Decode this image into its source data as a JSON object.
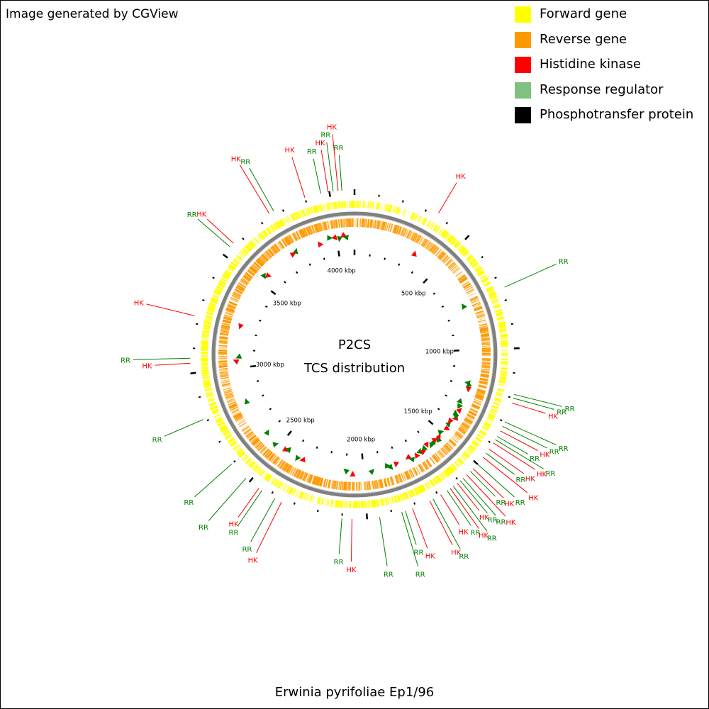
{
  "credit": "Image generated by CGView",
  "legend": [
    {
      "label": "Forward gene",
      "color": "#ffff00"
    },
    {
      "label": "Reverse gene",
      "color": "#ff9900"
    },
    {
      "label": "Histidine kinase",
      "color": "#ff0000"
    },
    {
      "label": "Response regulator",
      "color": "#80c080"
    },
    {
      "label": "Phosphotransfer protein",
      "color": "#000000"
    }
  ],
  "center_title": "P2CS",
  "center_subtitle": "TCS distribution",
  "genome_name": "Erwinia pyrifoliae Ep1/96",
  "colors": {
    "hk": "#ff0000",
    "rr": "#008000",
    "backbone": "#808080",
    "forward": "#ffff00",
    "reverse": "#ff9900"
  },
  "chart_data": {
    "type": "circular-genome-map",
    "genome_length_kbp": 4100,
    "tick_labels": [
      "500 kbp",
      "1000 kbp",
      "1500 kbp",
      "2000 kbp",
      "2500 kbp",
      "3000 kbp",
      "3500 kbp",
      "4000 kbp"
    ],
    "tick_positions_kbp": [
      500,
      1000,
      1500,
      2000,
      2500,
      3000,
      3500,
      4000
    ],
    "features": [
      {
        "label": "RR",
        "kbp": 3965,
        "type": "rr"
      },
      {
        "label": "HK",
        "kbp": 3995,
        "type": "hk"
      },
      {
        "label": "RR",
        "kbp": 4015,
        "type": "rr"
      },
      {
        "label": "HK",
        "kbp": 4035,
        "type": "hk"
      },
      {
        "label": "RR",
        "kbp": 4050,
        "type": "rr"
      },
      {
        "label": "HK",
        "kbp": 3900,
        "type": "hk"
      },
      {
        "label": "RR",
        "kbp": 3765,
        "type": "rr"
      },
      {
        "label": "HK",
        "kbp": 3745,
        "type": "hk"
      },
      {
        "label": "HK",
        "kbp": 3560,
        "type": "hk"
      },
      {
        "label": "RR",
        "kbp": 3540,
        "type": "rr"
      },
      {
        "label": "HK",
        "kbp": 3230,
        "type": "hk"
      },
      {
        "label": "RR",
        "kbp": 3060,
        "type": "rr"
      },
      {
        "label": "HK",
        "kbp": 3040,
        "type": "hk"
      },
      {
        "label": "RR",
        "kbp": 2810,
        "type": "rr"
      },
      {
        "label": "RR",
        "kbp": 2600,
        "type": "rr"
      },
      {
        "label": "RR",
        "kbp": 2520,
        "type": "rr"
      },
      {
        "label": "HK",
        "kbp": 2455,
        "type": "hk"
      },
      {
        "label": "RR",
        "kbp": 2440,
        "type": "rr"
      },
      {
        "label": "RR",
        "kbp": 2380,
        "type": "rr"
      },
      {
        "label": "HK",
        "kbp": 2350,
        "type": "hk"
      },
      {
        "label": "RR",
        "kbp": 2100,
        "type": "rr"
      },
      {
        "label": "HK",
        "kbp": 2060,
        "type": "hk"
      },
      {
        "label": "RR",
        "kbp": 1950,
        "type": "rr"
      },
      {
        "label": "RR",
        "kbp": 1860,
        "type": "rr"
      },
      {
        "label": "RR",
        "kbp": 1845,
        "type": "rr"
      },
      {
        "label": "HK",
        "kbp": 1815,
        "type": "hk"
      },
      {
        "label": "HK",
        "kbp": 1740,
        "type": "hk"
      },
      {
        "label": "RR",
        "kbp": 1725,
        "type": "rr"
      },
      {
        "label": "HK",
        "kbp": 1690,
        "type": "hk"
      },
      {
        "label": "RR",
        "kbp": 1660,
        "type": "rr"
      },
      {
        "label": "HK",
        "kbp": 1645,
        "type": "hk"
      },
      {
        "label": "RR",
        "kbp": 1630,
        "type": "rr"
      },
      {
        "label": "HK",
        "kbp": 1610,
        "type": "hk"
      },
      {
        "label": "RR",
        "kbp": 1595,
        "type": "rr"
      },
      {
        "label": "RR",
        "kbp": 1580,
        "type": "rr"
      },
      {
        "label": "HK",
        "kbp": 1560,
        "type": "hk"
      },
      {
        "label": "RR",
        "kbp": 1540,
        "type": "rr"
      },
      {
        "label": "HK",
        "kbp": 1525,
        "type": "hk"
      },
      {
        "label": "RR",
        "kbp": 1500,
        "type": "rr"
      },
      {
        "label": "HK",
        "kbp": 1465,
        "type": "hk"
      },
      {
        "label": "RR",
        "kbp": 1445,
        "type": "rr"
      },
      {
        "label": "HK",
        "kbp": 1425,
        "type": "hk"
      },
      {
        "label": "HK",
        "kbp": 1395,
        "type": "hk"
      },
      {
        "label": "RR",
        "kbp": 1380,
        "type": "rr"
      },
      {
        "label": "RR",
        "kbp": 1365,
        "type": "rr"
      },
      {
        "label": "HK",
        "kbp": 1340,
        "type": "hk"
      },
      {
        "label": "RR",
        "kbp": 1320,
        "type": "rr"
      },
      {
        "label": "RR",
        "kbp": 1300,
        "type": "rr"
      },
      {
        "label": "HK",
        "kbp": 1220,
        "type": "hk"
      },
      {
        "label": "RR",
        "kbp": 1200,
        "type": "rr"
      },
      {
        "label": "RR",
        "kbp": 1185,
        "type": "rr"
      },
      {
        "label": "RR",
        "kbp": 750,
        "type": "rr"
      },
      {
        "label": "HK",
        "kbp": 350,
        "type": "hk"
      }
    ]
  }
}
